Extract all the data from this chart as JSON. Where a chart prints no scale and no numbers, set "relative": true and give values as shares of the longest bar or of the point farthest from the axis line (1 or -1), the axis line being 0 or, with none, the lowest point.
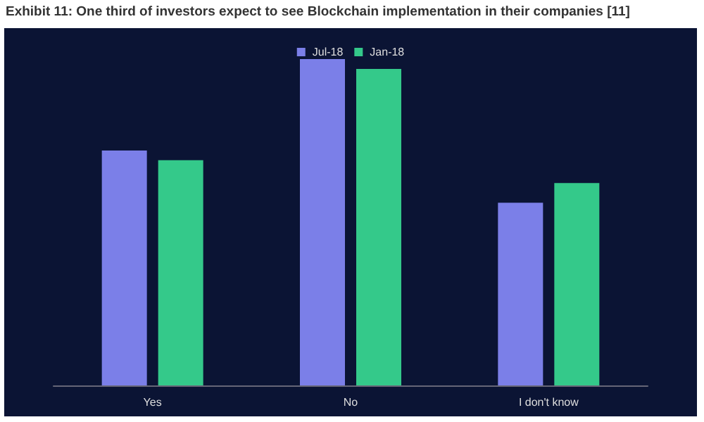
{
  "chart_data": {
    "type": "bar",
    "title": "Exhibit 11: One third of investors expect to see Blockchain implementation in their companies [11]",
    "categories": [
      "Yes",
      "No",
      "I don't know"
    ],
    "relative": true,
    "series": [
      {
        "name": "Jul-18",
        "color": "#7b7fe8",
        "values": [
          0.72,
          1,
          0.56
        ]
      },
      {
        "name": "Jan-18",
        "color": "#34c98a",
        "values": [
          0.69,
          0.97,
          0.62
        ]
      }
    ],
    "legend": "top"
  }
}
